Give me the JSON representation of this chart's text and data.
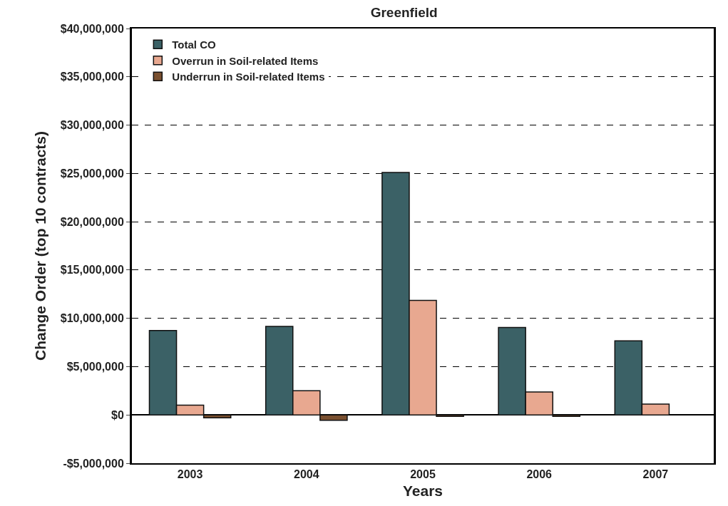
{
  "chart_data": {
    "type": "bar",
    "title": "Greenfield",
    "xlabel": "Years",
    "ylabel": "Change Order (top 10 contracts)",
    "categories": [
      "2003",
      "2004",
      "2005",
      "2006",
      "2007"
    ],
    "series": [
      {
        "name": "Total CO",
        "color": "#3b6166",
        "values": [
          8740000,
          9170000,
          25100000,
          9050000,
          7670000
        ]
      },
      {
        "name": "Overrun in Soil-related Items",
        "color": "#e8a890",
        "values": [
          1020000,
          2500000,
          11860000,
          2380000,
          1120000
        ]
      },
      {
        "name": "Underrun in Soil-related Items",
        "color": "#7a5030",
        "values": [
          -300000,
          -550000,
          -150000,
          -150000,
          null
        ]
      }
    ],
    "ylim": [
      -5000000,
      40000000
    ],
    "yticks": [
      {
        "value": -5000000,
        "label": "-$5,000,000"
      },
      {
        "value": 0,
        "label": "$0"
      },
      {
        "value": 5000000,
        "label": "$5,000,000"
      },
      {
        "value": 10000000,
        "label": "$10,000,000"
      },
      {
        "value": 15000000,
        "label": "$15,000,000"
      },
      {
        "value": 20000000,
        "label": "$20,000,000"
      },
      {
        "value": 25000000,
        "label": "$25,000,000"
      },
      {
        "value": 30000000,
        "label": "$30,000,000"
      },
      {
        "value": 35000000,
        "label": "$35,000,000"
      },
      {
        "value": 40000000,
        "label": "$40,000,000"
      }
    ],
    "grid": "y",
    "legend": "top left"
  }
}
